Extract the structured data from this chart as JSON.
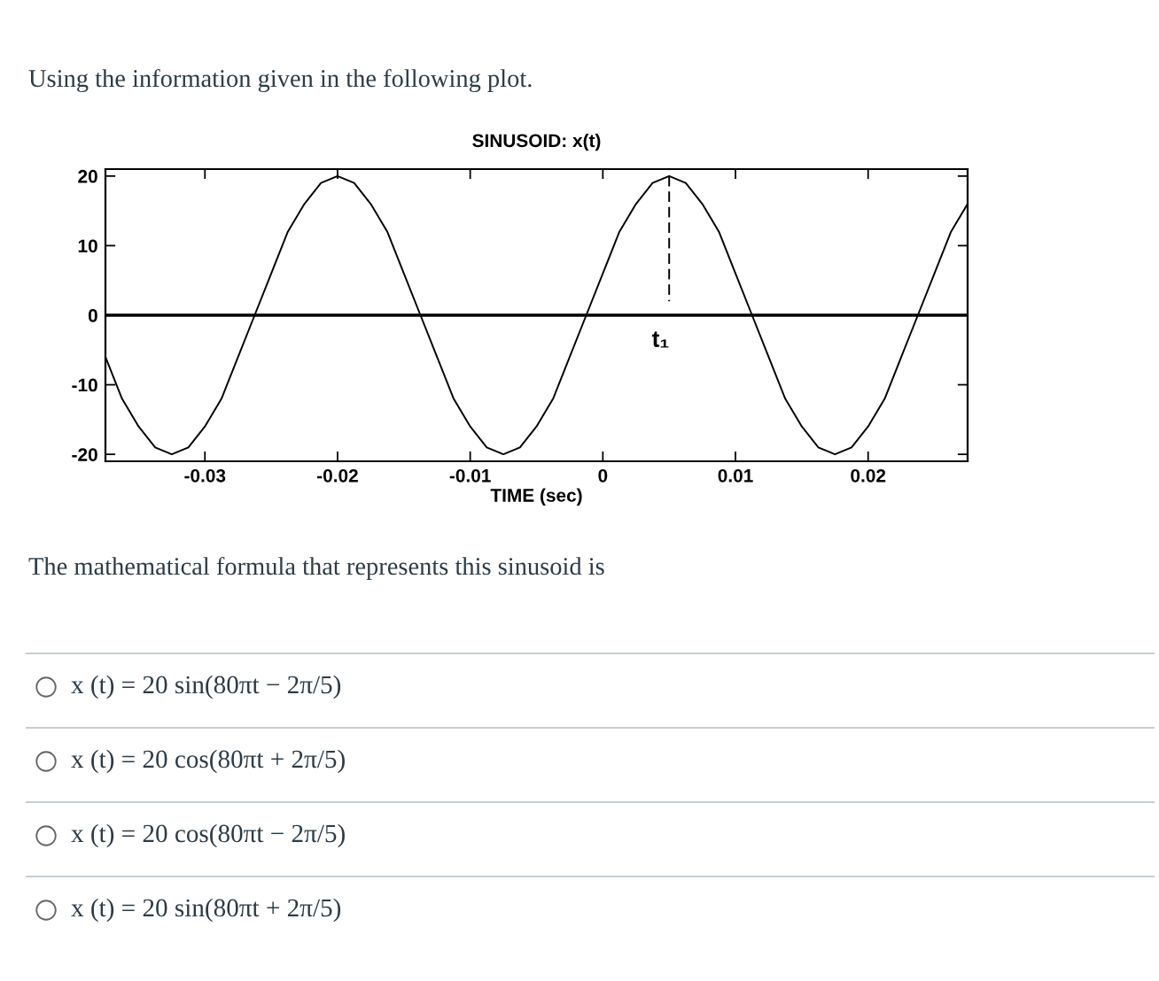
{
  "chart_data": {
    "type": "line",
    "title": "SINUSOID: x(t)",
    "xlabel": "TIME (sec)",
    "annotations": [
      "Using the information given in the following plot.",
      {
        "text": "t₁",
        "x": 0.005,
        "y": 0
      },
      "The mathematical formula that represents this sinusoid is",
      "x (t) = 20 sin(80πt − 2π/5)",
      "x (t) = 20 cos(80πt + 2π/5)",
      "x (t) = 20 cos(80πt − 2π/5)",
      "x (t) = 20 sin(80πt + 2π/5)"
    ],
    "series": [
      {
        "color": "#000000",
        "x": [
          -0.0375,
          -0.03625,
          -0.035,
          -0.03375,
          -0.0325,
          -0.03125,
          -0.03,
          -0.02875,
          -0.0275,
          -0.02625,
          -0.025,
          -0.02375,
          -0.0225,
          -0.02125,
          -0.02,
          -0.01875,
          -0.0175,
          -0.01625,
          -0.015,
          -0.01375,
          -0.0125,
          -0.01125,
          -0.01,
          -0.00875,
          -0.0075,
          -0.00625,
          -0.005,
          -0.00375,
          -0.0025,
          -0.00125,
          0,
          0.00125,
          0.0025,
          0.00375,
          0.005,
          0.00625,
          0.0075,
          0.00875,
          0.01,
          0.01125,
          0.0125,
          0.01375,
          0.015,
          0.01625,
          0.0175,
          0.01875,
          0.02,
          0.02125,
          0.0225,
          0.02375,
          0.025,
          0.02625,
          0.0275
        ],
        "values": [
          -6,
          -12,
          -16,
          -19,
          -20,
          -19,
          -16,
          -12,
          -6,
          0,
          6,
          12,
          16,
          19,
          20,
          19,
          16,
          12,
          6,
          0,
          -6,
          -12,
          -16,
          -19,
          -20,
          -19,
          -16,
          -12,
          -6,
          0,
          6,
          12,
          16,
          19,
          20,
          19,
          16,
          12,
          6,
          0,
          -6,
          -12,
          -16,
          -19,
          -20,
          -19,
          -16,
          -12,
          -6,
          0,
          6,
          12,
          16
        ]
      },
      {
        "type": "line",
        "color": "#000000",
        "line_style": "dashed",
        "x": [
          0.005,
          0.005
        ],
        "values": [
          20,
          2
        ]
      }
    ],
    "xlim": [
      -0.0375,
      0.0275
    ],
    "xticks": [
      -0.03,
      -0.02,
      -0.01,
      0,
      0.01,
      0.02
    ],
    "ylim": [
      -21,
      21
    ],
    "yticks": [
      -20,
      -10,
      0,
      10,
      20
    ],
    "ref_lines": [
      {
        "axis": "y",
        "value": 0,
        "color": "#000000"
      }
    ]
  }
}
